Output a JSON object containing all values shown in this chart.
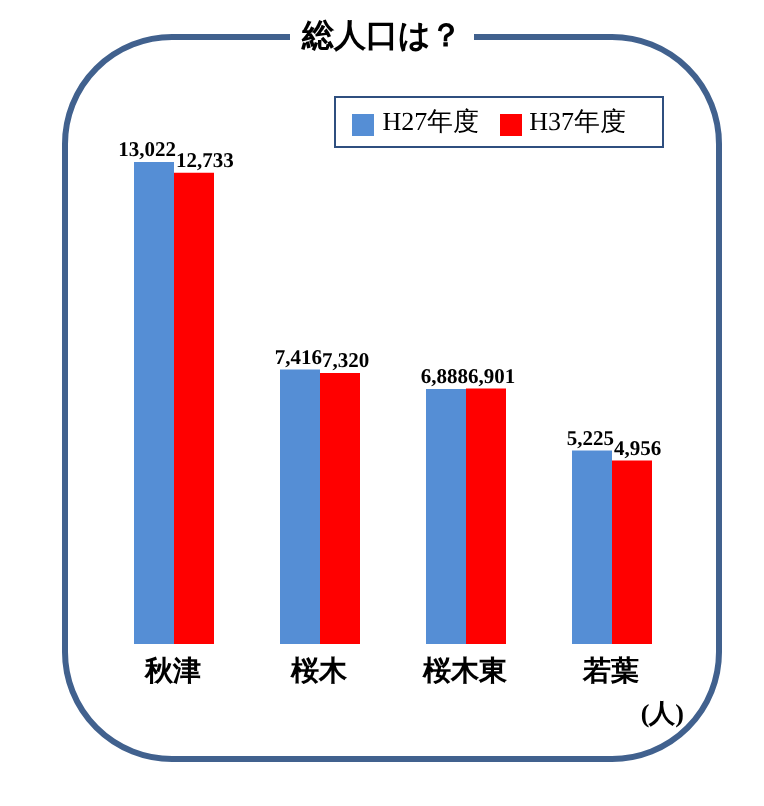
{
  "chart_data": {
    "type": "bar",
    "title": "総人口は？",
    "categories": [
      "秋津",
      "桜木",
      "桜木東",
      "若葉"
    ],
    "series": [
      {
        "name": "H27年度",
        "color": "#558ed5",
        "values": [
          13022,
          7416,
          6888,
          5225
        ],
        "value_labels": [
          "13,022",
          "7,416",
          "6,888",
          "5,225"
        ]
      },
      {
        "name": "H37年度",
        "color": "#ff0000",
        "values": [
          12733,
          7320,
          6901,
          4956
        ],
        "value_labels": [
          "12,733",
          "7,320",
          "6,901",
          "4,956"
        ]
      }
    ],
    "legend": "top right",
    "grid": false,
    "annotations": [
      "(人)"
    ]
  }
}
